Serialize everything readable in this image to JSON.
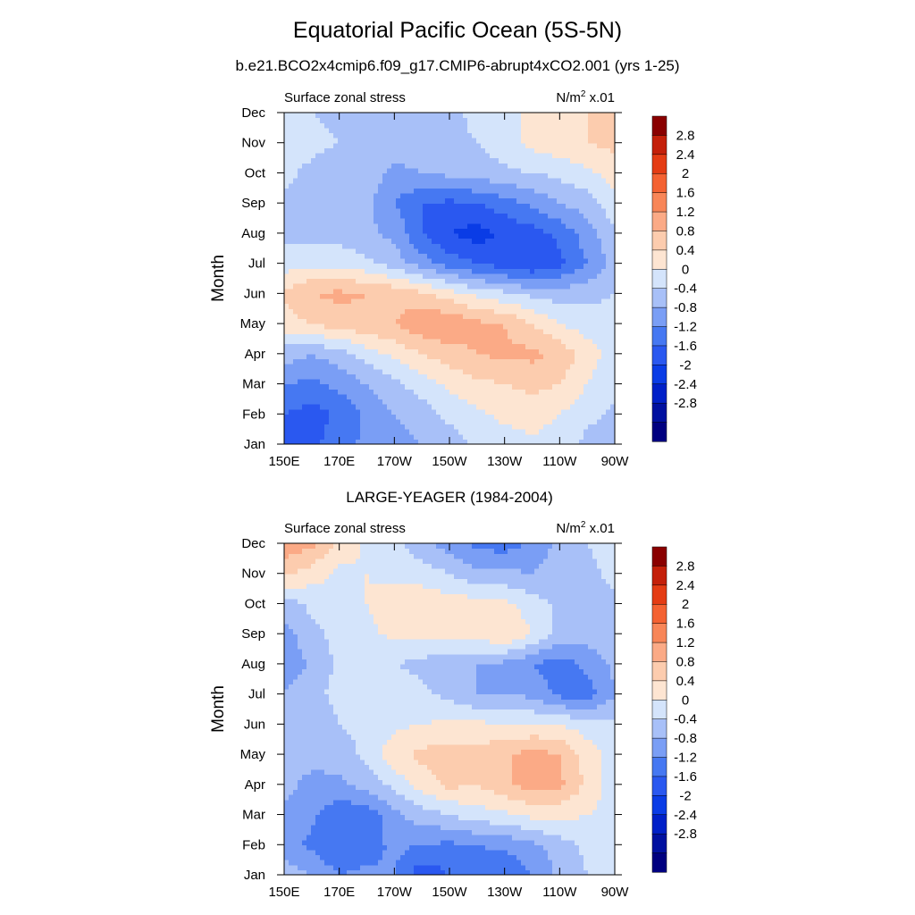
{
  "title": "Equatorial Pacific Ocean (5S-5N)",
  "case_subtitle": "b.e21.BCO2x4cmip6.f09_g17.CMIP6-abrupt4xCO2.001 (yrs 1-25)",
  "reference_title": "LARGE-YEAGER (1984-2004)",
  "colors": [
    "#000080",
    "#0010a0",
    "#0020c8",
    "#0a3ce6",
    "#2a58f0",
    "#4678f2",
    "#7a9ef5",
    "#a8c0f8",
    "#d4e4fb",
    "#fde5d2",
    "#fcccae",
    "#fbaa86",
    "#f88658",
    "#f46232",
    "#e43c14",
    "#c4200a",
    "#8a0000"
  ],
  "colorbar_labels": [
    "2.8",
    "2.4",
    "2",
    "1.6",
    "1.2",
    "0.8",
    "0.4",
    "0",
    "-0.4",
    "-0.8",
    "-1.2",
    "-1.6",
    "-2",
    "-2.4",
    "-2.8"
  ],
  "colorbar_levels": [
    -2.8,
    -2.4,
    -2.0,
    -1.6,
    -1.2,
    -0.8,
    -0.4,
    0,
    0.4,
    0.8,
    1.2,
    1.6,
    2.0,
    2.4,
    2.8
  ],
  "chart_data": [
    {
      "type": "heatmap",
      "variable_label": "Surface zonal stress",
      "units_base": "N/m",
      "units_sup": "2",
      "units_scale": "x.01",
      "ylabel": "Month",
      "x_ticks": [
        "150E",
        "170E",
        "170W",
        "150W",
        "130W",
        "110W",
        "90W"
      ],
      "y_ticks": [
        "Jan",
        "Feb",
        "Mar",
        "Apr",
        "May",
        "Jun",
        "Jul",
        "Aug",
        "Sep",
        "Oct",
        "Nov",
        "Dec"
      ],
      "x_range": [
        "150E",
        "90W"
      ],
      "y_range": [
        "Jan",
        "Dec"
      ],
      "grid": [
        [
          -1.3,
          -1.3,
          -1.0,
          -0.7,
          -0.6,
          -0.4,
          -0.2,
          0.1,
          0.2,
          0.3,
          0.2,
          -0.1,
          -0.2
        ],
        [
          -1.2,
          -1.4,
          -1.1,
          -0.7,
          -0.4,
          -0.2,
          0.1,
          0.3,
          0.5,
          0.6,
          0.4,
          0.1,
          -0.1
        ],
        [
          -0.8,
          -0.9,
          -0.7,
          -0.4,
          -0.1,
          0.2,
          0.5,
          0.7,
          0.8,
          0.9,
          0.8,
          0.4,
          0.1
        ],
        [
          -0.2,
          -0.4,
          -0.2,
          0.2,
          0.5,
          0.8,
          1.0,
          1.2,
          1.3,
          1.3,
          1.1,
          0.6,
          0.2
        ],
        [
          0.6,
          0.8,
          1.0,
          1.1,
          1.2,
          1.5,
          1.6,
          1.3,
          1.2,
          0.8,
          0.4,
          0.2,
          0.1
        ],
        [
          0.9,
          1.2,
          1.3,
          1.2,
          1.1,
          0.9,
          0.6,
          0.3,
          0.1,
          -0.1,
          -0.2,
          -0.1,
          0.0
        ],
        [
          0.2,
          0.3,
          0.3,
          0.1,
          -0.2,
          -0.6,
          -1.0,
          -1.2,
          -1.4,
          -1.6,
          -1.3,
          -0.8,
          -0.2
        ],
        [
          -0.1,
          -0.2,
          -0.2,
          -0.3,
          -0.5,
          -1.2,
          -1.6,
          -1.8,
          -1.5,
          -1.4,
          -1.1,
          -0.6,
          -0.1
        ],
        [
          -0.1,
          -0.2,
          -0.2,
          -0.3,
          -0.8,
          -1.2,
          -1.3,
          -1.2,
          -1.0,
          -0.7,
          -0.4,
          -0.2,
          0.3
        ],
        [
          0.1,
          -0.1,
          -0.2,
          -0.2,
          -0.5,
          -0.4,
          -0.3,
          -0.2,
          -0.1,
          0.0,
          0.1,
          0.3,
          0.6
        ],
        [
          0.2,
          0.1,
          0.0,
          -0.1,
          -0.2,
          -0.2,
          -0.1,
          0.0,
          0.2,
          0.5,
          0.7,
          0.8,
          0.9
        ],
        [
          0.1,
          0.0,
          -0.1,
          -0.2,
          -0.3,
          -0.2,
          -0.1,
          0.1,
          0.3,
          0.5,
          0.7,
          0.8,
          0.8
        ]
      ]
    },
    {
      "type": "heatmap",
      "variable_label": "Surface zonal stress",
      "units_base": "N/m",
      "units_sup": "2",
      "units_scale": "x.01",
      "ylabel": "Month",
      "x_ticks": [
        "150E",
        "170E",
        "170W",
        "150W",
        "130W",
        "110W",
        "90W"
      ],
      "y_ticks": [
        "Jan",
        "Feb",
        "Mar",
        "Apr",
        "May",
        "Jun",
        "Jul",
        "Aug",
        "Sep",
        "Oct",
        "Nov",
        "Dec"
      ],
      "x_range": [
        "150E",
        "90W"
      ],
      "y_range": [
        "Jan",
        "Dec"
      ],
      "grid": [
        [
          -0.2,
          -0.4,
          -0.8,
          -0.7,
          -0.8,
          -1.5,
          -1.2,
          -1.0,
          -1.2,
          -0.8,
          -0.3,
          0.0,
          0.1
        ],
        [
          -0.6,
          -0.9,
          -1.2,
          -1.0,
          -0.7,
          -0.8,
          -0.9,
          -0.8,
          -0.7,
          -0.5,
          -0.2,
          0.1,
          0.2
        ],
        [
          -0.5,
          -0.7,
          -1.1,
          -1.1,
          -0.5,
          -0.2,
          0.0,
          0.2,
          0.3,
          0.5,
          0.5,
          0.4,
          0.2
        ],
        [
          -0.3,
          -0.5,
          -0.5,
          -0.2,
          0.1,
          0.6,
          0.9,
          0.8,
          1.1,
          1.4,
          1.3,
          0.7,
          0.2
        ],
        [
          -0.2,
          -0.3,
          -0.2,
          0.1,
          0.7,
          0.9,
          1.0,
          1.0,
          1.1,
          1.4,
          1.2,
          0.6,
          0.2
        ],
        [
          -0.2,
          -0.2,
          0.0,
          0.1,
          0.3,
          0.4,
          0.5,
          0.5,
          0.4,
          0.4,
          0.4,
          0.2,
          0.1
        ],
        [
          -0.3,
          -0.1,
          0.1,
          0.2,
          0.2,
          0.1,
          -0.1,
          -0.4,
          -0.4,
          -0.5,
          -0.9,
          -1.0,
          -0.4
        ],
        [
          -0.8,
          -0.3,
          0.1,
          0.2,
          0.0,
          -0.1,
          -0.4,
          -0.4,
          -0.5,
          -0.8,
          -1.0,
          -0.7,
          -0.3
        ],
        [
          -0.6,
          -0.1,
          0.1,
          0.3,
          0.5,
          0.5,
          0.6,
          0.6,
          0.8,
          0.4,
          -0.1,
          -0.2,
          0.0
        ],
        [
          -0.2,
          0.1,
          0.3,
          0.4,
          0.6,
          0.7,
          0.6,
          0.6,
          0.5,
          0.2,
          -0.1,
          -0.3,
          -0.1
        ],
        [
          0.9,
          0.6,
          0.3,
          0.4,
          0.3,
          0.2,
          0.0,
          -0.3,
          -0.3,
          -0.4,
          -0.2,
          -0.1,
          0.1
        ],
        [
          1.5,
          1.3,
          0.7,
          0.3,
          0.1,
          -0.3,
          -0.6,
          -0.9,
          -1.0,
          -0.7,
          -0.3,
          0.0,
          0.2
        ]
      ]
    }
  ]
}
